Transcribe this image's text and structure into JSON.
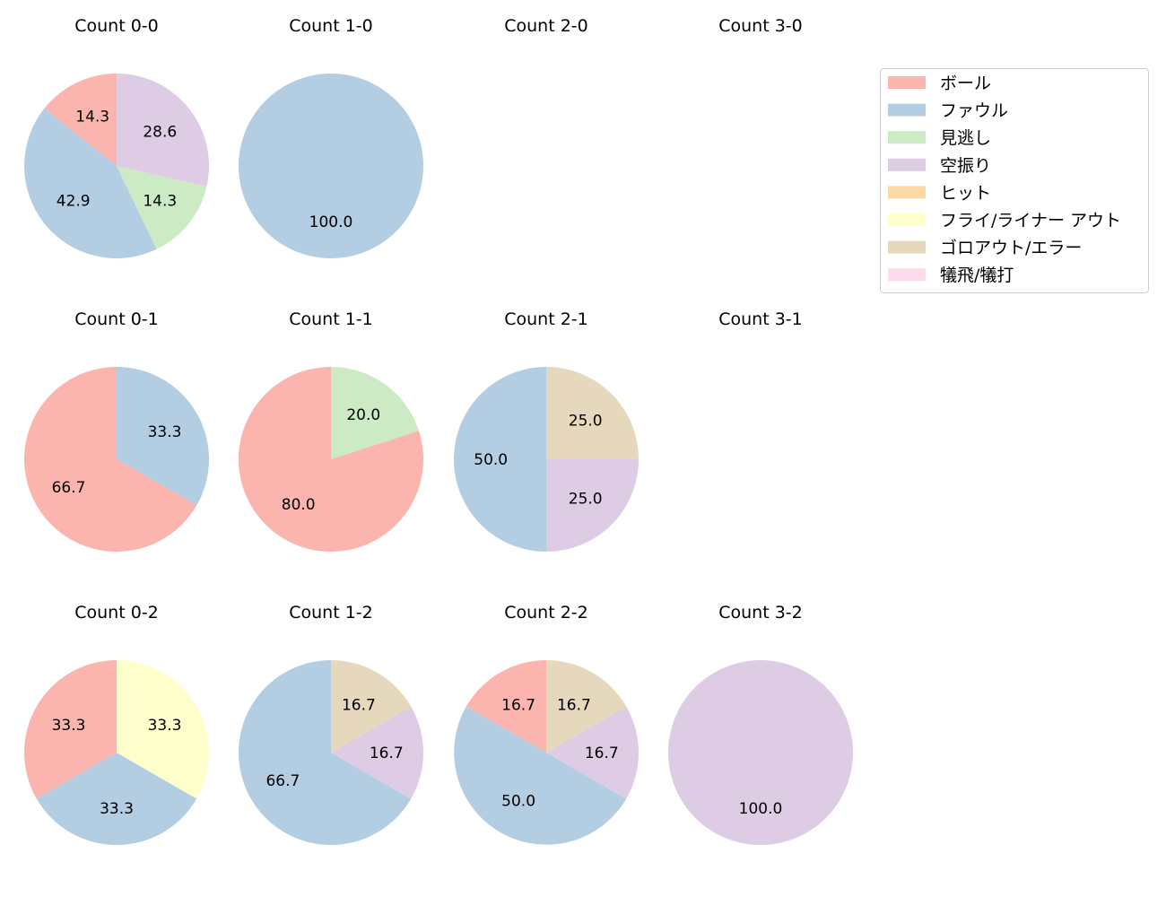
{
  "chart_data": {
    "type": "pie",
    "legend": {
      "placement": "top-right",
      "entries": [
        {
          "name": "ボール",
          "color": "#fbb4ae"
        },
        {
          "name": "ファウル",
          "color": "#b3cde3"
        },
        {
          "name": "見逃し",
          "color": "#ccebc5"
        },
        {
          "name": "空振り",
          "color": "#decbe4"
        },
        {
          "name": "ヒット",
          "color": "#fed9a6"
        },
        {
          "name": "フライ/ライナー アウト",
          "color": "#ffffcc"
        },
        {
          "name": "ゴロアウト/エラー",
          "color": "#e5d8bd"
        },
        {
          "name": "犠飛/犠打",
          "color": "#fddaec"
        }
      ]
    },
    "panels": [
      {
        "title": "Count 0-0",
        "slices": [
          {
            "category": "ボール",
            "value": 14.3
          },
          {
            "category": "ファウル",
            "value": 42.9
          },
          {
            "category": "見逃し",
            "value": 14.3
          },
          {
            "category": "空振り",
            "value": 28.6
          }
        ]
      },
      {
        "title": "Count 1-0",
        "slices": [
          {
            "category": "ファウル",
            "value": 100.0
          }
        ]
      },
      {
        "title": "Count 2-0",
        "slices": []
      },
      {
        "title": "Count 3-0",
        "slices": []
      },
      {
        "title": "Count 0-1",
        "slices": [
          {
            "category": "ボール",
            "value": 66.7
          },
          {
            "category": "ファウル",
            "value": 33.3
          }
        ]
      },
      {
        "title": "Count 1-1",
        "slices": [
          {
            "category": "ボール",
            "value": 80.0
          },
          {
            "category": "見逃し",
            "value": 20.0
          }
        ]
      },
      {
        "title": "Count 2-1",
        "slices": [
          {
            "category": "ファウル",
            "value": 50.0
          },
          {
            "category": "空振り",
            "value": 25.0
          },
          {
            "category": "ゴロアウト/エラー",
            "value": 25.0
          }
        ]
      },
      {
        "title": "Count 3-1",
        "slices": []
      },
      {
        "title": "Count 0-2",
        "slices": [
          {
            "category": "ボール",
            "value": 33.3
          },
          {
            "category": "ファウル",
            "value": 33.3
          },
          {
            "category": "フライ/ライナー アウト",
            "value": 33.3
          }
        ]
      },
      {
        "title": "Count 1-2",
        "slices": [
          {
            "category": "ファウル",
            "value": 66.7
          },
          {
            "category": "空振り",
            "value": 16.7
          },
          {
            "category": "ゴロアウト/エラー",
            "value": 16.7
          }
        ]
      },
      {
        "title": "Count 2-2",
        "slices": [
          {
            "category": "ボール",
            "value": 16.7
          },
          {
            "category": "ファウル",
            "value": 50.0
          },
          {
            "category": "空振り",
            "value": 16.7
          },
          {
            "category": "ゴロアウト/エラー",
            "value": 16.7
          }
        ]
      },
      {
        "title": "Count 3-2",
        "slices": [
          {
            "category": "空振り",
            "value": 100.0
          }
        ]
      }
    ]
  }
}
